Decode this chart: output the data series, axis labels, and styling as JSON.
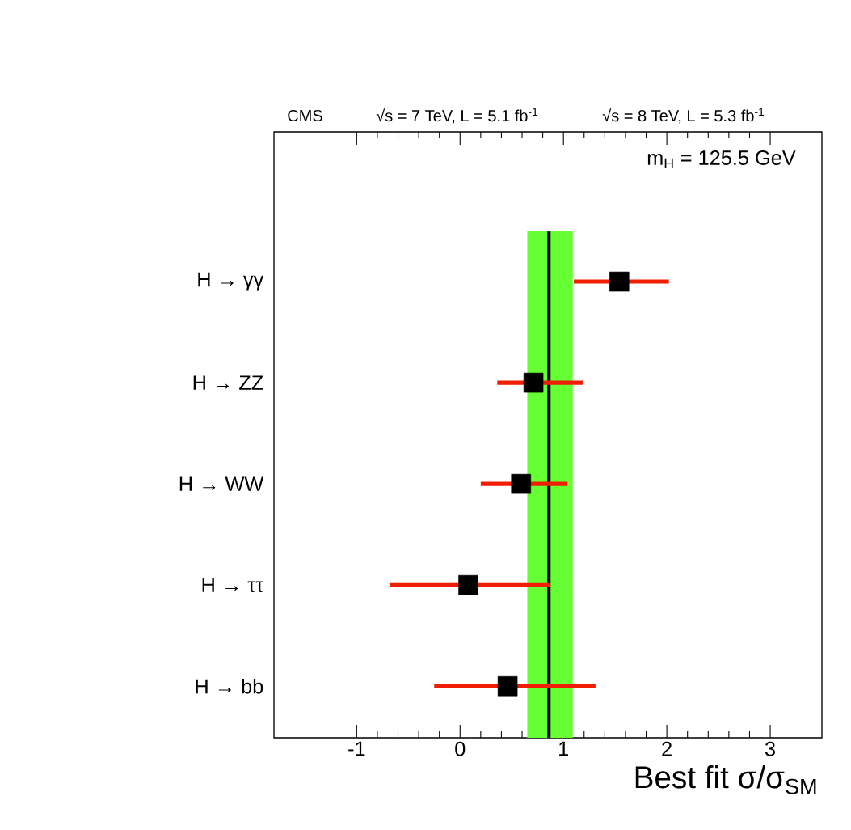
{
  "chart_data": {
    "type": "scatter",
    "orientation": "horizontal",
    "marker": "square",
    "color": "#000000",
    "categories": [
      "H → γγ",
      "H → ZZ",
      "H → WW",
      "H → ττ",
      "H → bb"
    ],
    "values": [
      1.54,
      0.71,
      0.59,
      0.08,
      0.46
    ],
    "errors": [
      [
        1.1,
        2.02
      ],
      [
        0.36,
        1.19
      ],
      [
        0.2,
        1.04
      ],
      [
        -0.68,
        0.87
      ],
      [
        -0.25,
        1.31
      ]
    ],
    "xlim": [
      -1.8,
      3.5
    ],
    "xticks": [
      -1,
      0,
      1,
      2,
      3
    ],
    "xlabel": "Best fit σ/σ$_{SM}$",
    "bands": [
      {
        "axis": "x",
        "from": 0.65,
        "to": 1.09,
        "color": "#66ff33"
      }
    ],
    "ref_lines": [
      {
        "axis": "x",
        "value": 0.86,
        "color": "#000000"
      }
    ],
    "annotations": [
      "CMS",
      "√s = 7 TeV, L = 5.1 fb$^{-1}$",
      "√s = 8 TeV, L = 5.3 fb$^{-1}$",
      "m$_{H}$ = 125.5 GeV"
    ]
  }
}
